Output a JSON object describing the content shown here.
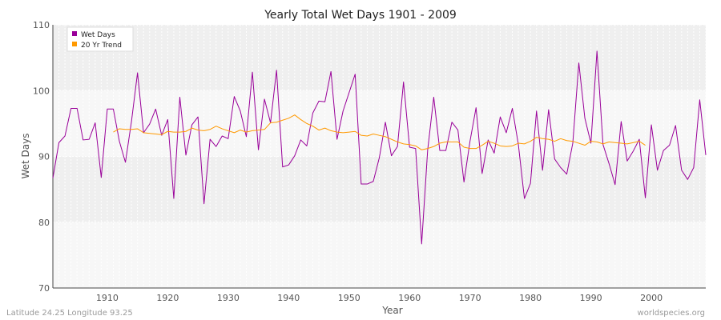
{
  "footer": {
    "left": "Latitude 24.25 Longitude 93.25",
    "right": "worldspecies.org"
  },
  "colors": {
    "wet_days": "#990099",
    "trend": "#ff9900",
    "band_light": "#f7f7f7",
    "band_dark": "#efefef",
    "axis": "#444444"
  },
  "chart_data": {
    "type": "line",
    "title": "Yearly Total Wet Days 1901 - 2009",
    "xlabel": "Year",
    "ylabel": "Wet Days",
    "xlim": [
      1901,
      2009
    ],
    "ylim": [
      70,
      110
    ],
    "x_ticks": [
      1910,
      1920,
      1930,
      1940,
      1950,
      1960,
      1970,
      1980,
      1990,
      2000
    ],
    "y_ticks": [
      70,
      80,
      90,
      100,
      110
    ],
    "grid": true,
    "legend": "top-left",
    "series": [
      {
        "name": "Wet Days",
        "color": "#990099",
        "x": [
          1901,
          1902,
          1903,
          1904,
          1905,
          1906,
          1907,
          1908,
          1909,
          1910,
          1911,
          1912,
          1913,
          1914,
          1915,
          1916,
          1917,
          1918,
          1919,
          1920,
          1921,
          1922,
          1923,
          1924,
          1925,
          1926,
          1927,
          1928,
          1929,
          1930,
          1931,
          1932,
          1933,
          1934,
          1935,
          1936,
          1937,
          1938,
          1939,
          1940,
          1941,
          1942,
          1943,
          1944,
          1945,
          1946,
          1947,
          1948,
          1949,
          1950,
          1951,
          1952,
          1953,
          1954,
          1955,
          1956,
          1957,
          1958,
          1959,
          1960,
          1961,
          1962,
          1963,
          1964,
          1965,
          1966,
          1967,
          1968,
          1969,
          1970,
          1971,
          1972,
          1973,
          1974,
          1975,
          1976,
          1977,
          1978,
          1979,
          1980,
          1981,
          1982,
          1983,
          1984,
          1985,
          1986,
          1987,
          1988,
          1989,
          1990,
          1991,
          1992,
          1993,
          1994,
          1995,
          1996,
          1997,
          1998,
          1999,
          2000,
          2001,
          2002,
          2003,
          2004,
          2005,
          2006,
          2007,
          2008,
          2009
        ],
        "values": [
          86.7,
          92.1,
          93.1,
          97.3,
          97.3,
          92.5,
          92.6,
          95.1,
          86.8,
          97.2,
          97.2,
          92.3,
          89.1,
          95.3,
          102.7,
          93.6,
          94.9,
          97.2,
          93.2,
          95.6,
          83.6,
          99.0,
          90.2,
          94.8,
          96.0,
          82.8,
          92.6,
          91.5,
          93.1,
          92.7,
          99.1,
          96.9,
          93.0,
          102.8,
          91.0,
          98.7,
          95.1,
          103.1,
          88.4,
          88.7,
          90.1,
          92.5,
          91.6,
          96.6,
          98.4,
          98.3,
          102.9,
          92.6,
          96.9,
          99.7,
          102.5,
          85.8,
          85.8,
          86.2,
          89.8,
          95.2,
          90.1,
          91.5,
          101.3,
          91.4,
          91.2,
          76.7,
          91.0,
          99.0,
          90.9,
          90.9,
          95.2,
          94.0,
          86.1,
          92.3,
          97.4,
          87.4,
          92.5,
          90.5,
          96.0,
          93.6,
          97.3,
          91.8,
          83.6,
          85.9,
          96.9,
          87.9,
          97.1,
          89.6,
          88.3,
          87.3,
          92.0,
          104.2,
          95.8,
          92.0,
          106.0,
          91.8,
          88.9,
          85.7,
          95.3,
          89.3,
          90.8,
          92.6,
          83.7,
          94.8,
          87.9,
          90.9,
          91.7,
          94.7,
          87.9,
          86.5,
          88.3,
          98.6,
          90.2
        ]
      },
      {
        "name": "20 Yr Trend",
        "color": "#ff9900",
        "x": [
          1911,
          1912,
          1913,
          1914,
          1915,
          1916,
          1917,
          1918,
          1919,
          1920,
          1921,
          1922,
          1923,
          1924,
          1925,
          1926,
          1927,
          1928,
          1929,
          1930,
          1931,
          1932,
          1933,
          1934,
          1935,
          1936,
          1937,
          1938,
          1939,
          1940,
          1941,
          1942,
          1943,
          1944,
          1945,
          1946,
          1947,
          1948,
          1949,
          1950,
          1951,
          1952,
          1953,
          1954,
          1955,
          1956,
          1957,
          1958,
          1959,
          1960,
          1961,
          1962,
          1963,
          1964,
          1965,
          1966,
          1967,
          1968,
          1969,
          1970,
          1971,
          1972,
          1973,
          1974,
          1975,
          1976,
          1977,
          1978,
          1979,
          1980,
          1981,
          1982,
          1983,
          1984,
          1985,
          1986,
          1987,
          1988,
          1989,
          1990,
          1991,
          1992,
          1993,
          1994,
          1995,
          1996,
          1997,
          1998,
          1999
        ],
        "values": [
          93.7,
          94.2,
          94.1,
          94.1,
          94.2,
          93.6,
          93.5,
          93.4,
          93.3,
          93.8,
          93.7,
          93.7,
          93.8,
          94.3,
          94.0,
          93.9,
          94.1,
          94.6,
          94.2,
          93.9,
          93.6,
          94.0,
          93.7,
          93.9,
          94.0,
          94.1,
          95.1,
          95.2,
          95.5,
          95.8,
          96.3,
          95.6,
          95.0,
          94.6,
          94.0,
          94.3,
          93.9,
          93.7,
          93.6,
          93.7,
          93.8,
          93.2,
          93.1,
          93.4,
          93.2,
          93.0,
          92.6,
          92.2,
          91.9,
          91.8,
          91.6,
          91.0,
          91.2,
          91.5,
          92.0,
          92.2,
          92.2,
          92.2,
          91.4,
          91.2,
          91.2,
          91.7,
          92.3,
          92.0,
          91.6,
          91.5,
          91.6,
          92.0,
          91.9,
          92.3,
          92.9,
          92.7,
          92.6,
          92.3,
          92.7,
          92.4,
          92.3,
          92.0,
          91.7,
          92.3,
          92.2,
          91.9,
          92.2,
          92.1,
          92.0,
          91.9,
          92.1,
          92.3,
          91.7
        ]
      }
    ]
  }
}
